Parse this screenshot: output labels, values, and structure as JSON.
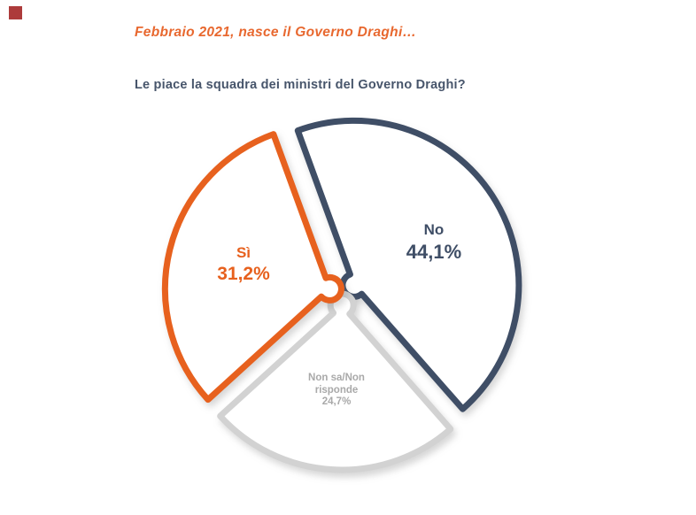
{
  "logo": {
    "color": "#AD3B3B"
  },
  "header": {
    "title": "Febbraio 2021, nasce il Governo Draghi…",
    "title_color": "#E8682F",
    "question": "Le piace la squadra dei ministri del Governo Draghi?",
    "question_color": "#47556B"
  },
  "chart_data": {
    "type": "pie",
    "style": "exploded-outline-donut",
    "title": "Le piace la squadra dei ministri del Governo Draghi?",
    "start_angle_deg": -20,
    "legend_position": "none",
    "slices": [
      {
        "name": "No",
        "value": 44.1,
        "display": "44,1%",
        "color": "#3F4E66",
        "label_color": "#3F4E66"
      },
      {
        "name": "Non sa/Non\nrisponde",
        "value": 24.7,
        "display": "24,7%",
        "color": "#D2D2D2",
        "label_color": "#A9A9A9"
      },
      {
        "name": "Sì",
        "value": 31.2,
        "display": "31,2%",
        "color": "#E7611E",
        "label_color": "#E7611E"
      }
    ]
  }
}
